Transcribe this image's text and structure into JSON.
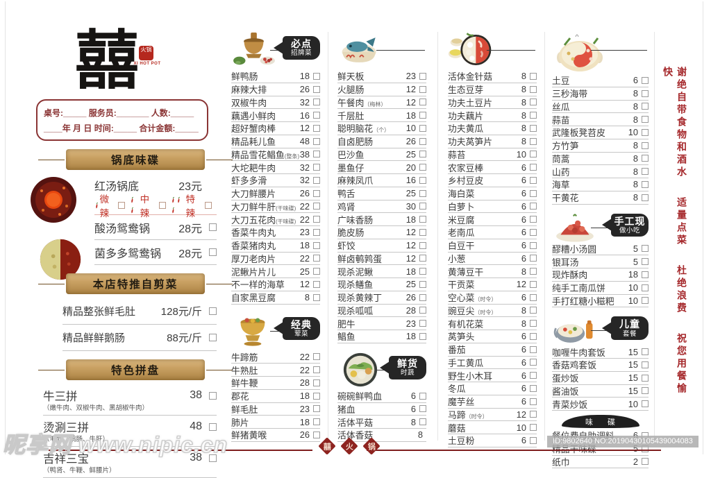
{
  "brand": {
    "logo_char": "囍",
    "seal_label": "火锅",
    "seal_sub": "XI HOT POT"
  },
  "order_form": {
    "line1": "桌号:_____  服务员:_______  人数:_____",
    "line2": "____年  月  日 时间:_____  合计金额:_____"
  },
  "colors": {
    "accent_red": "#a5282b",
    "deep_red": "#8e2420",
    "badge_black": "#262626",
    "wood_tan": "#c9a76b",
    "spice_red": "#c03026"
  },
  "left_sections": [
    {
      "title": "锅底味碟",
      "icons": [
        "red-soup-bowl",
        "duo-pot"
      ],
      "rows": [
        {
          "n": "红汤锅底",
          "p": "23元",
          "cb": false
        },
        {
          "type": "spice",
          "options": [
            {
              "label": "微辣",
              "chilis": 1
            },
            {
              "label": "中辣",
              "chilis": 2
            },
            {
              "label": "特辣",
              "chilis": 3
            }
          ]
        },
        {
          "n": "酸汤鸳鸯锅",
          "p": "28元"
        },
        {
          "n": "菌多多鸳鸯锅",
          "p": "28元"
        }
      ]
    },
    {
      "title": "本店特推自剪菜",
      "icons": [],
      "rows": [
        {
          "n": "精品整张鲜毛肚",
          "p": "128元/斤"
        },
        {
          "n": "精品鲜鲜鹅肠",
          "p": "88元/斤"
        }
      ]
    },
    {
      "title": "特色拼盘",
      "icons": [],
      "rows": [
        {
          "n": "牛三拼",
          "note": "（嫩牛肉、双椒牛肉、黑胡椒牛肉）",
          "p": "38"
        },
        {
          "n": "烫涮三拼",
          "note": "（毛肚、鹅肠、牛肝）",
          "p": "48"
        },
        {
          "n": "吉祥三宝",
          "note": "（鸭肾、牛鞭、鲜腰片）",
          "p": "38"
        }
      ]
    }
  ],
  "menu_columns": [
    {
      "segments": [
        {
          "icon": "copper-hotpot",
          "badge": [
            "必点",
            "招牌菜"
          ],
          "items": [
            {
              "n": "鲜鸭肠",
              "p": "18"
            },
            {
              "n": "麻辣大排",
              "p": "26"
            },
            {
              "n": "双椒牛肉",
              "p": "32"
            },
            {
              "n": "藕遇小鲜肉",
              "p": "16"
            },
            {
              "n": "超好蟹肉棒",
              "p": "12"
            },
            {
              "n": "精品耗儿鱼",
              "p": "48"
            },
            {
              "n": "精品雪花鲳鱼",
              "note": "(整条)",
              "p": "38"
            },
            {
              "n": "大坨耙牛肉",
              "p": "32"
            },
            {
              "n": "虾多多滑",
              "p": "32"
            },
            {
              "n": "大刀鲜腰片",
              "p": "26"
            },
            {
              "n": "大刀鲜牛肝",
              "note": "(干味碟)",
              "p": "22"
            },
            {
              "n": "大刀五花肉",
              "note": "(干味碟)",
              "p": "22"
            },
            {
              "n": "香菜牛肉丸",
              "p": "23"
            },
            {
              "n": "香菜猪肉丸",
              "p": "18"
            },
            {
              "n": "厚刀老肉片",
              "p": "22"
            },
            {
              "n": "泥鳅片片儿",
              "p": "25"
            },
            {
              "n": "不一样的海草",
              "p": "12"
            },
            {
              "n": "自家黑豆腐",
              "p": "8"
            }
          ]
        },
        {
          "icon": "golden-pot",
          "badge": [
            "经典",
            "荤菜"
          ],
          "items": [
            {
              "n": "牛蹄筋",
              "p": "22"
            },
            {
              "n": "牛熟肚",
              "p": "22"
            },
            {
              "n": "鲜牛鞭",
              "p": "28"
            },
            {
              "n": "郡花",
              "p": "18"
            },
            {
              "n": "鲜毛肚",
              "p": "23"
            },
            {
              "n": "肺片",
              "p": "18"
            },
            {
              "n": "鲜猪黄喉",
              "p": "26"
            }
          ]
        }
      ]
    },
    {
      "segments": [
        {
          "icon": "fish-pot",
          "badge": null,
          "items": [
            {
              "n": "鲜天板",
              "p": "23"
            },
            {
              "n": "火腿肠",
              "p": "12"
            },
            {
              "n": "午餐肉",
              "note": "（梅林）",
              "p": "12"
            },
            {
              "n": "千层肚",
              "p": "18"
            },
            {
              "n": "聪明脑花",
              "note": "（个）",
              "p": "10"
            },
            {
              "n": "自卤肥肠",
              "p": "26"
            },
            {
              "n": "巴沙鱼",
              "p": "25"
            },
            {
              "n": "墨鱼仔",
              "p": "20"
            },
            {
              "n": "麻辣凤爪",
              "p": "16"
            },
            {
              "n": "鸭舌",
              "p": "25"
            },
            {
              "n": "鸡肾",
              "p": "30"
            },
            {
              "n": "广味香肠",
              "p": "18"
            },
            {
              "n": "脆皮肠",
              "p": "12"
            },
            {
              "n": "虾饺",
              "p": "12"
            },
            {
              "n": "鲜卤鹌鹑蛋",
              "p": "12"
            },
            {
              "n": "现杀泥鳅",
              "p": "18"
            },
            {
              "n": "现杀鳝鱼",
              "p": "25"
            },
            {
              "n": "现杀黄辣丁",
              "p": "26"
            },
            {
              "n": "现杀呱呱",
              "p": "28"
            },
            {
              "n": "肥牛",
              "p": "23"
            },
            {
              "n": "鲳鱼",
              "p": "18"
            }
          ]
        },
        {
          "icon": "veggie-bowl",
          "badge": [
            "鲜货",
            "时蔬"
          ],
          "items": [
            {
              "n": "碗碗鲜鸭血",
              "p": "6"
            },
            {
              "n": "猪血",
              "p": "6"
            },
            {
              "n": "活体平菇",
              "p": "8"
            },
            {
              "n": "活体香菇",
              "p": "8",
              "cb": false
            }
          ]
        }
      ]
    },
    {
      "segments": [
        {
          "icon": "soup-bowl",
          "badge": null,
          "items": [
            {
              "n": "活体金针菇",
              "p": "8"
            },
            {
              "n": "生态豆芽",
              "p": "8"
            },
            {
              "n": "功夫土豆片",
              "p": "8"
            },
            {
              "n": "功夫藕片",
              "p": "8"
            },
            {
              "n": "功夫黄瓜",
              "p": "8"
            },
            {
              "n": "功夫莴笋片",
              "p": "8"
            },
            {
              "n": "蒜苔",
              "p": "10"
            },
            {
              "n": "农家豆棒",
              "p": "6"
            },
            {
              "n": "乡村豆皮",
              "p": "6"
            },
            {
              "n": "海白菜",
              "p": "6"
            },
            {
              "n": "白萝卜",
              "p": "6"
            },
            {
              "n": "米豆腐",
              "p": "6"
            },
            {
              "n": "老南瓜",
              "p": "6"
            },
            {
              "n": "白豆干",
              "p": "6"
            },
            {
              "n": "小葱",
              "p": "6"
            },
            {
              "n": "黄薄豆干",
              "p": "8"
            },
            {
              "n": "干贡菜",
              "p": "12"
            },
            {
              "n": "空心菜",
              "note": "（时令）",
              "p": "6"
            },
            {
              "n": "豌豆尖",
              "note": "（时令）",
              "p": "8"
            },
            {
              "n": "有机花菜",
              "p": "8"
            },
            {
              "n": "莴笋头",
              "p": "6"
            },
            {
              "n": "番茄",
              "p": "6"
            },
            {
              "n": "手工黄瓜",
              "p": "6"
            },
            {
              "n": "野生小木耳",
              "p": "6"
            },
            {
              "n": "冬瓜",
              "p": "6"
            },
            {
              "n": "魔芋丝",
              "p": "6"
            },
            {
              "n": "马蹄",
              "note": "（时令）",
              "p": "12"
            },
            {
              "n": "蘑菇",
              "p": "10"
            },
            {
              "n": "土豆粉",
              "p": "6"
            }
          ]
        }
      ]
    },
    {
      "segments": [
        {
          "icon": "yinyang-pot",
          "badge": null,
          "items": [
            {
              "n": "土豆",
              "p": "6"
            },
            {
              "n": "三秒海带",
              "p": "8"
            },
            {
              "n": "丝瓜",
              "p": "8"
            },
            {
              "n": "蒜苗",
              "p": "8"
            },
            {
              "n": "武隆板凳苕皮",
              "p": "10"
            },
            {
              "n": "方竹笋",
              "p": "8"
            },
            {
              "n": "茼蒿",
              "p": "8"
            },
            {
              "n": "山药",
              "p": "8"
            },
            {
              "n": "海草",
              "p": "8"
            },
            {
              "n": "干黄花",
              "p": "8"
            }
          ]
        },
        {
          "icon": "snack-plate",
          "badge": [
            "手工现",
            "做小吃"
          ],
          "items": [
            {
              "n": "醪糟小汤圆",
              "p": "5"
            },
            {
              "n": "银耳汤",
              "p": "5"
            },
            {
              "n": "现炸酥肉",
              "p": "18"
            },
            {
              "n": "纯手工南瓜饼",
              "p": "10"
            },
            {
              "n": "手打红糖小糍粑",
              "p": "10"
            }
          ]
        },
        {
          "icon": "kids-pot",
          "badge": [
            "儿童",
            "套餐"
          ],
          "items": [
            {
              "n": "咖喱牛肉套饭",
              "p": "15"
            },
            {
              "n": "香菇鸡套饭",
              "p": "15"
            },
            {
              "n": "蛋炒饭",
              "p": "15"
            },
            {
              "n": "酱油饭",
              "p": "15"
            },
            {
              "n": "青菜炒饭",
              "p": "10"
            }
          ]
        },
        {
          "pill": "味 碟",
          "items": [
            {
              "n": "餐位费自助调料",
              "p": "6"
            },
            {
              "n": "精品干味碟",
              "p": "5"
            },
            {
              "n": "纸巾",
              "p": "2"
            }
          ]
        }
      ]
    }
  ],
  "notice": {
    "phrases": [
      "谢绝自带食物和酒水",
      "适量点菜",
      "杜绝浪费",
      "祝您用餐愉快"
    ]
  },
  "footer": {
    "seals": [
      "囍",
      "火",
      "锅"
    ]
  },
  "watermarks": {
    "site": "昵享网 www.nipic.cn",
    "id_label": "ID:9802640 NO:20190430105439004083"
  }
}
